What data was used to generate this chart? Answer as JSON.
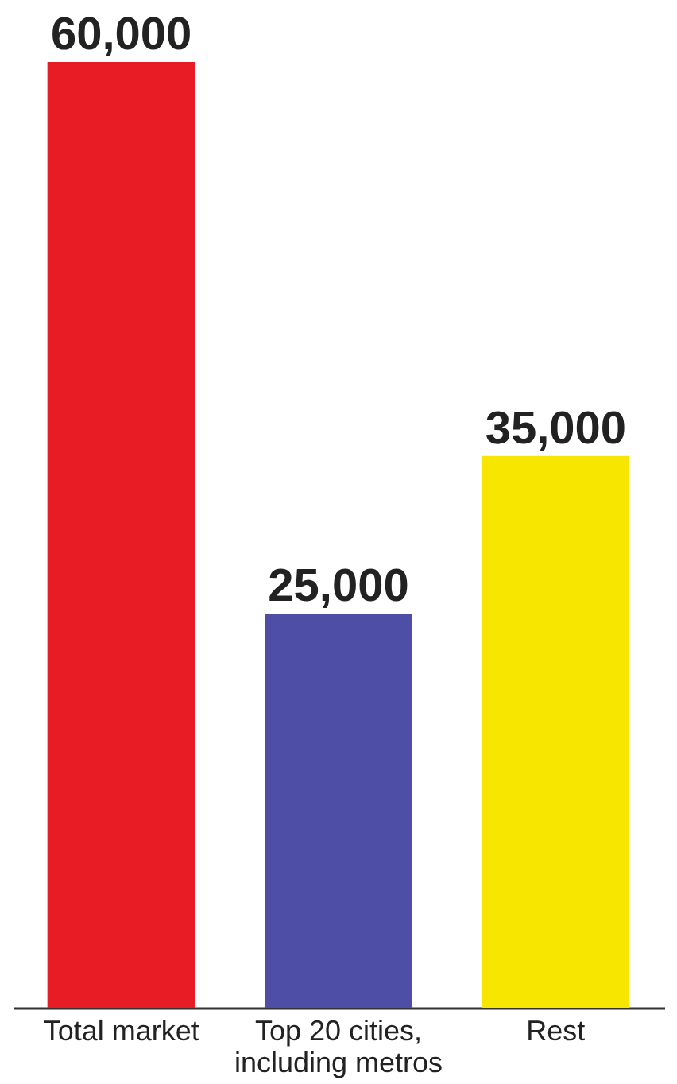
{
  "chart_data": {
    "type": "bar",
    "categories": [
      "Total market",
      "Top 20 cities, including metros",
      "Rest"
    ],
    "values": [
      60000,
      25000,
      35000
    ],
    "colors": [
      "#e81c24",
      "#4f4ea6",
      "#f7e600"
    ],
    "data_labels": true,
    "value_labels": [
      "60,000",
      "25,000",
      "35,000"
    ]
  }
}
